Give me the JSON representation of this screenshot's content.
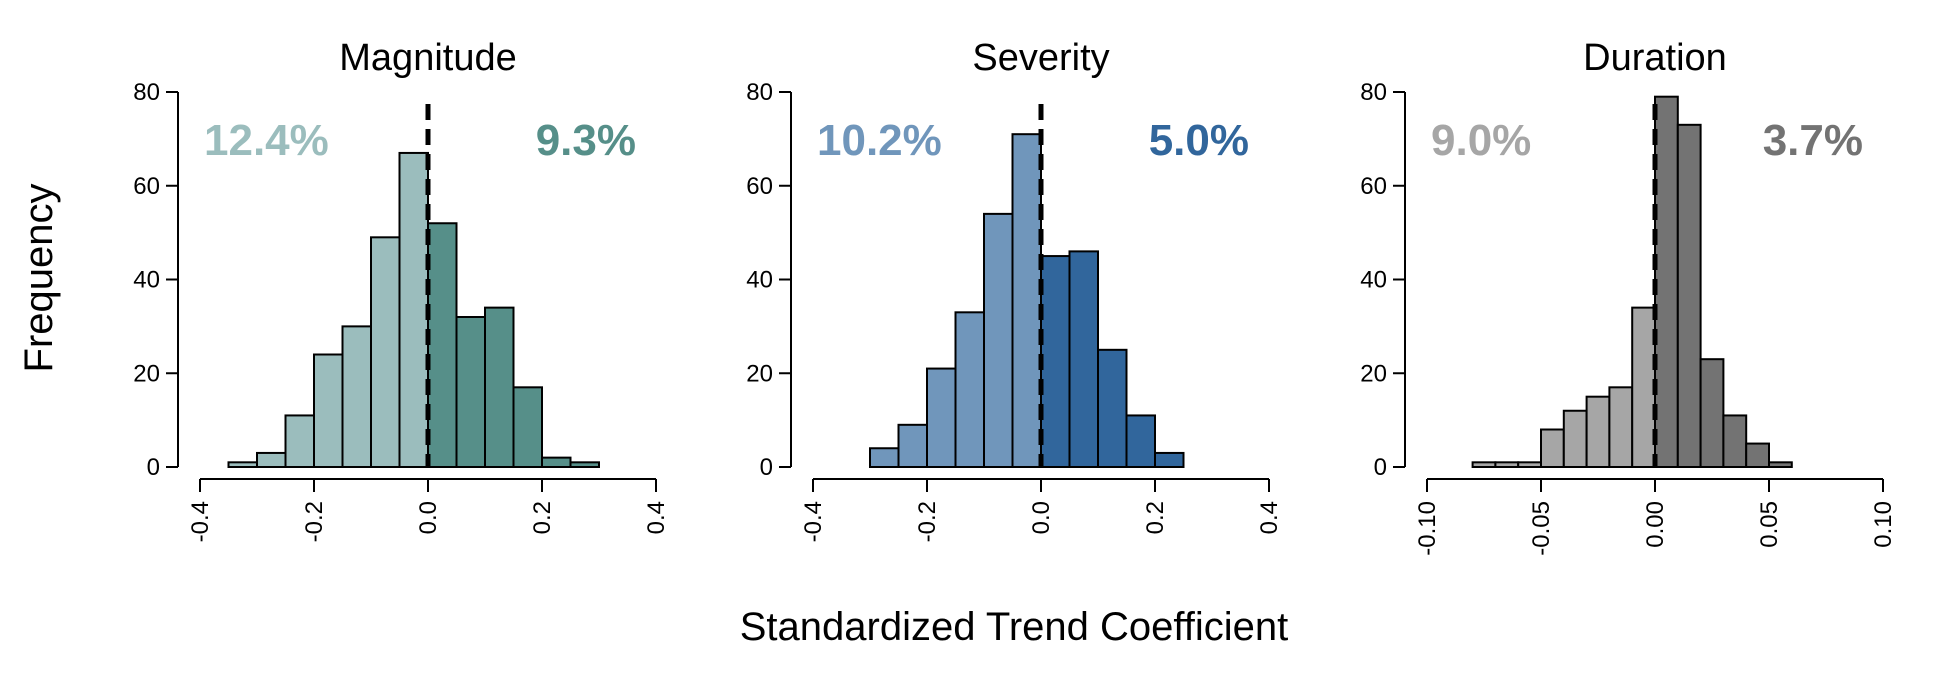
{
  "ylabel": "Frequency",
  "xlabel": "Standardized Trend Coefficient",
  "chart_data": [
    {
      "type": "bar",
      "title": "Magnitude",
      "xlim": [
        -0.4,
        0.4
      ],
      "ylim": [
        0,
        80
      ],
      "xticks": [
        "-0.4",
        "-0.2",
        "0.0",
        "0.2",
        "0.4"
      ],
      "xtick_values": [
        -0.4,
        -0.2,
        0.0,
        0.2,
        0.4
      ],
      "yticks": [
        "0",
        "20",
        "40",
        "60",
        "80"
      ],
      "ytick_values": [
        0,
        20,
        40,
        60,
        80
      ],
      "bin_width": 0.05,
      "bin_start": -0.35,
      "values": [
        1,
        3,
        11,
        24,
        30,
        49,
        67,
        52,
        32,
        34,
        17,
        2,
        1
      ],
      "left_percent": "12.4%",
      "right_percent": "9.3%",
      "colors": {
        "negative": "#9bbdbd",
        "positive": "#568f89"
      }
    },
    {
      "type": "bar",
      "title": "Severity",
      "xlim": [
        -0.4,
        0.4
      ],
      "ylim": [
        0,
        80
      ],
      "xticks": [
        "-0.4",
        "-0.2",
        "0.0",
        "0.2",
        "0.4"
      ],
      "xtick_values": [
        -0.4,
        -0.2,
        0.0,
        0.2,
        0.4
      ],
      "yticks": [
        "0",
        "20",
        "40",
        "60",
        "80"
      ],
      "ytick_values": [
        0,
        20,
        40,
        60,
        80
      ],
      "bin_width": 0.05,
      "bin_start": -0.3,
      "values": [
        4,
        9,
        21,
        33,
        54,
        71,
        45,
        46,
        25,
        11,
        3
      ],
      "left_percent": "10.2%",
      "right_percent": "5.0%",
      "colors": {
        "negative": "#7096bb",
        "positive": "#31669c"
      }
    },
    {
      "type": "bar",
      "title": "Duration",
      "xlim": [
        -0.1,
        0.1
      ],
      "ylim": [
        0,
        80
      ],
      "xticks": [
        "-0.10",
        "-0.05",
        "0.00",
        "0.05",
        "0.10"
      ],
      "xtick_values": [
        -0.1,
        -0.05,
        0.0,
        0.05,
        0.1
      ],
      "yticks": [
        "0",
        "20",
        "40",
        "60",
        "80"
      ],
      "ytick_values": [
        0,
        20,
        40,
        60,
        80
      ],
      "bin_width": 0.01,
      "bin_start": -0.08,
      "values": [
        1,
        1,
        1,
        8,
        12,
        15,
        17,
        34,
        79,
        73,
        23,
        11,
        5,
        1
      ],
      "left_percent": "9.0%",
      "right_percent": "3.7%",
      "colors": {
        "negative": "#a6a6a6",
        "positive": "#737373"
      }
    }
  ]
}
